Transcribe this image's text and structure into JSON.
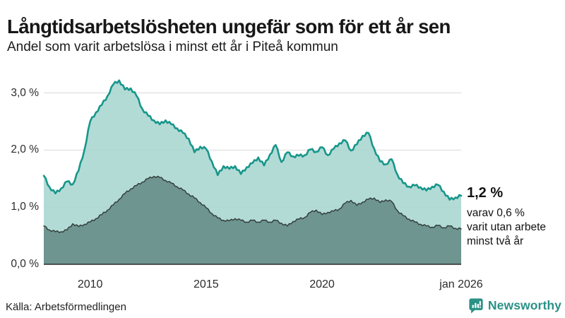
{
  "header": {
    "title": "Långtidsarbetslösheten ungefär som för ett år sen",
    "subtitle": "Andel som varit arbetslösa i minst ett år i Piteå kommun"
  },
  "annotation": {
    "value": "1,2 %",
    "detail": "varav 0,6 %\nvarit utan arbete\nminst två år"
  },
  "footer": {
    "source": "Källa: Arbetsförmedlingen",
    "brand": "Newsworthy"
  },
  "colors": {
    "long_term_line": "#17968b",
    "long_term_fill": "#a9d6cf",
    "very_long_term_line": "#333f3d",
    "very_long_term_fill": "#6b938d",
    "gridline": "#d9d9d9",
    "baseline": "#2b2b2b",
    "brand_teal": "#2b9186"
  },
  "chart_data": {
    "type": "area",
    "title": "Långtidsarbetslösheten ungefär som för ett år sen",
    "subtitle": "Andel som varit arbetslösa i minst ett år i Piteå kommun",
    "x_start": 2008.0,
    "x_step": 0.25,
    "x_end": 2026.0,
    "ylim": [
      0,
      3.3
    ],
    "grid": "horizontal",
    "legend_position": "none",
    "latest_values": {
      "minst_ett_ar": "1,2 %",
      "minst_tva_ar": "0,6 %"
    },
    "y_ticks": [
      {
        "label": "0,0 %",
        "value": 0
      },
      {
        "label": "1,0 %",
        "value": 1
      },
      {
        "label": "2,0 %",
        "value": 2
      },
      {
        "label": "3,0 %",
        "value": 3
      }
    ],
    "x_ticks": [
      {
        "label": "2010",
        "value": 2010
      },
      {
        "label": "2015",
        "value": 2015
      },
      {
        "label": "2020",
        "value": 2020
      },
      {
        "label": "jan 2026",
        "value": 2026
      }
    ],
    "series": [
      {
        "name": "Arbetslösa minst ett år",
        "line_color": "#17968b",
        "fill_color": "#a9d6cf",
        "line_width": 2.6,
        "jitter": 0.022,
        "values": [
          1.55,
          1.35,
          1.24,
          1.33,
          1.45,
          1.4,
          1.64,
          2.0,
          2.5,
          2.66,
          2.79,
          2.95,
          3.15,
          3.22,
          3.06,
          3.08,
          2.95,
          2.72,
          2.6,
          2.52,
          2.45,
          2.52,
          2.45,
          2.38,
          2.3,
          2.2,
          1.96,
          2.06,
          2.02,
          1.8,
          1.56,
          1.72,
          1.67,
          1.72,
          1.58,
          1.7,
          1.77,
          1.87,
          1.73,
          1.92,
          2.09,
          1.79,
          1.96,
          1.89,
          1.9,
          1.91,
          2.01,
          1.97,
          2.05,
          1.91,
          2.02,
          2.12,
          2.17,
          1.99,
          2.1,
          2.25,
          2.3,
          2.02,
          1.8,
          1.75,
          1.84,
          1.57,
          1.42,
          1.36,
          1.38,
          1.35,
          1.29,
          1.36,
          1.39,
          1.27,
          1.13,
          1.17,
          1.2
        ]
      },
      {
        "name": "Arbetslösa minst två år",
        "line_color": "#333f3d",
        "fill_color": "#6b938d",
        "line_width": 1.5,
        "jitter": 0.015,
        "values": [
          0.67,
          0.6,
          0.57,
          0.57,
          0.6,
          0.71,
          0.66,
          0.7,
          0.74,
          0.8,
          0.87,
          0.95,
          1.04,
          1.14,
          1.24,
          1.32,
          1.38,
          1.44,
          1.5,
          1.54,
          1.52,
          1.47,
          1.42,
          1.36,
          1.3,
          1.23,
          1.16,
          1.08,
          0.99,
          0.89,
          0.81,
          0.77,
          0.76,
          0.8,
          0.77,
          0.74,
          0.77,
          0.74,
          0.77,
          0.74,
          0.77,
          0.72,
          0.67,
          0.75,
          0.79,
          0.82,
          0.91,
          0.95,
          0.87,
          0.91,
          0.93,
          0.97,
          1.07,
          1.12,
          1.03,
          1.09,
          1.14,
          1.16,
          1.08,
          1.13,
          1.1,
          0.94,
          0.85,
          0.79,
          0.74,
          0.7,
          0.67,
          0.65,
          0.68,
          0.64,
          0.67,
          0.63,
          0.62
        ]
      }
    ]
  }
}
